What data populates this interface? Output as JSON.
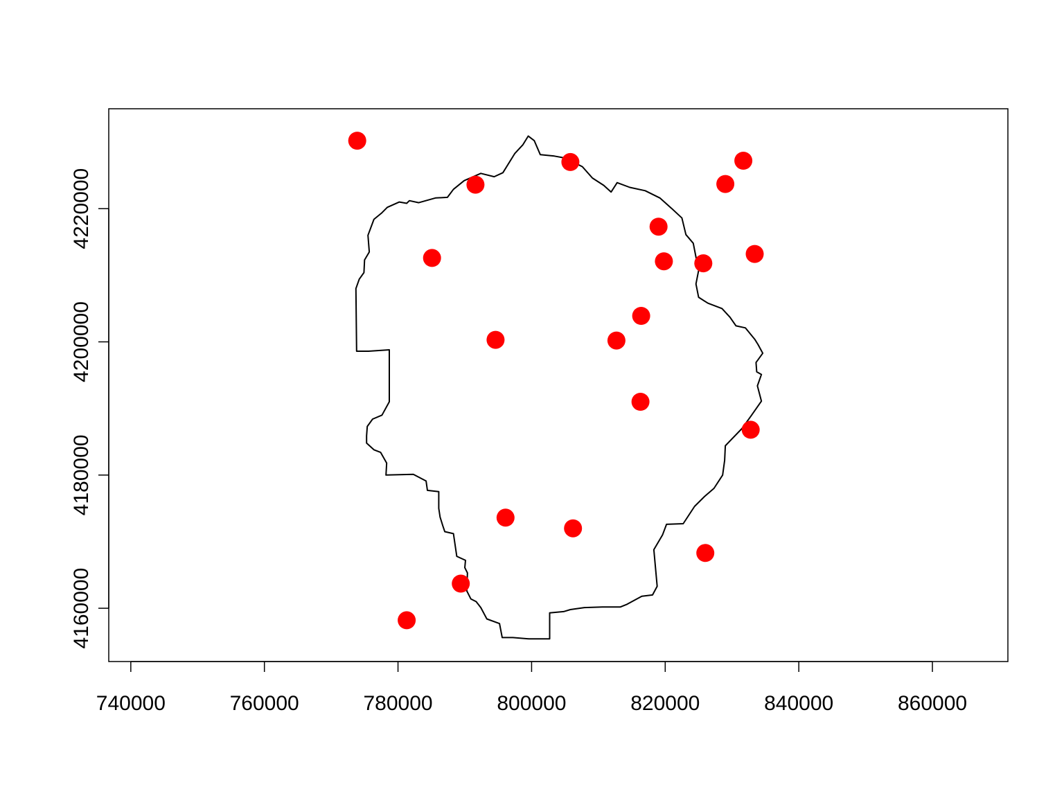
{
  "chart_data": {
    "type": "scatter",
    "title": "",
    "xlabel": "",
    "ylabel": "",
    "xlim": [
      736700,
      871300
    ],
    "ylim": [
      4152000,
      4235000
    ],
    "x_ticks": [
      740000,
      760000,
      780000,
      800000,
      820000,
      840000,
      860000
    ],
    "x_tick_labels": [
      "740000",
      "760000",
      "780000",
      "800000",
      "820000",
      "840000",
      "860000"
    ],
    "y_ticks": [
      4160000,
      4180000,
      4200000,
      4220000
    ],
    "y_tick_labels": [
      "4160000",
      "4180000",
      "4200000",
      "4220000"
    ],
    "grid": false,
    "point_color": "#ff0000",
    "boundary_color": "#000000",
    "points": {
      "x": [
        773900,
        805800,
        791600,
        831700,
        829000,
        819000,
        785100,
        819800,
        833400,
        825700,
        816400,
        794600,
        812700,
        816300,
        832800,
        796100,
        806200,
        826000,
        789400,
        781300
      ],
      "y": [
        4230200,
        4227000,
        4223600,
        4227200,
        4223700,
        4217300,
        4212600,
        4212100,
        4213200,
        4211800,
        4203900,
        4200300,
        4200200,
        4191000,
        4186800,
        4173600,
        4172000,
        4168300,
        4163700,
        4158200
      ]
    },
    "boundary": {
      "x": [
        777500,
        778400,
        780200,
        781300,
        781700,
        783100,
        785600,
        787400,
        788300,
        789900,
        792400,
        794400,
        795700,
        797500,
        798700,
        799500,
        800400,
        801300,
        803400,
        805600,
        806600,
        807600,
        809100,
        810800,
        811900,
        812800,
        814700,
        817000,
        819200,
        821000,
        822500,
        823100,
        824200,
        825000,
        824600,
        825000,
        826400,
        828500,
        829700,
        830600,
        832000,
        833400,
        833900,
        834600,
        833600,
        833700,
        834400,
        833800,
        834400,
        832800,
        831500,
        829000,
        828900,
        828600,
        827300,
        825900,
        824400,
        822700,
        820200,
        819600,
        818300,
        818800,
        818100,
        816500,
        814300,
        813300,
        810600,
        807900,
        805800,
        804800,
        802700,
        802700,
        799600,
        797200,
        795600,
        795200,
        793300,
        792400,
        791700,
        790900,
        790300,
        790400,
        790000,
        790100,
        788800,
        788300,
        787000,
        786700,
        786300,
        786100,
        786100,
        784400,
        784200,
        782300,
        778200,
        778300,
        777400,
        776400,
        775300,
        775300,
        775400,
        776200,
        777600,
        778700,
        778700,
        775600,
        773800,
        773700,
        774200,
        774900,
        775000,
        775700,
        775500,
        776400,
        777500
      ],
      "y": [
        4219300,
        4220200,
        4221000,
        4220800,
        4221200,
        4220900,
        4221600,
        4221700,
        4222900,
        4224200,
        4225300,
        4224800,
        4225400,
        4228300,
        4229600,
        4230900,
        4230200,
        4228100,
        4227900,
        4227500,
        4226800,
        4226300,
        4224600,
        4223500,
        4222500,
        4223900,
        4223200,
        4222700,
        4221600,
        4220000,
        4218600,
        4216100,
        4214800,
        4210700,
        4208700,
        4206700,
        4205800,
        4205000,
        4203700,
        4202400,
        4202100,
        4200400,
        4199600,
        4198300,
        4196900,
        4195500,
        4195100,
        4193400,
        4191100,
        4188800,
        4187000,
        4184400,
        4182200,
        4180000,
        4178000,
        4176800,
        4175300,
        4172700,
        4172600,
        4171000,
        4168800,
        4163300,
        4162000,
        4161800,
        4160600,
        4160200,
        4160200,
        4160100,
        4159800,
        4159500,
        4159300,
        4155400,
        4155400,
        4155600,
        4155600,
        4157700,
        4158400,
        4160100,
        4161000,
        4161400,
        4162600,
        4165300,
        4166100,
        4167200,
        4167800,
        4171200,
        4171500,
        4172400,
        4173700,
        4175000,
        4177500,
        4177700,
        4179100,
        4180100,
        4180000,
        4181800,
        4183400,
        4183800,
        4184800,
        4185900,
        4187300,
        4188400,
        4189000,
        4191000,
        4198800,
        4198600,
        4198600,
        4208000,
        4209400,
        4210400,
        4212300,
        4213500,
        4216000,
        4218400,
        4219300
      ]
    }
  }
}
